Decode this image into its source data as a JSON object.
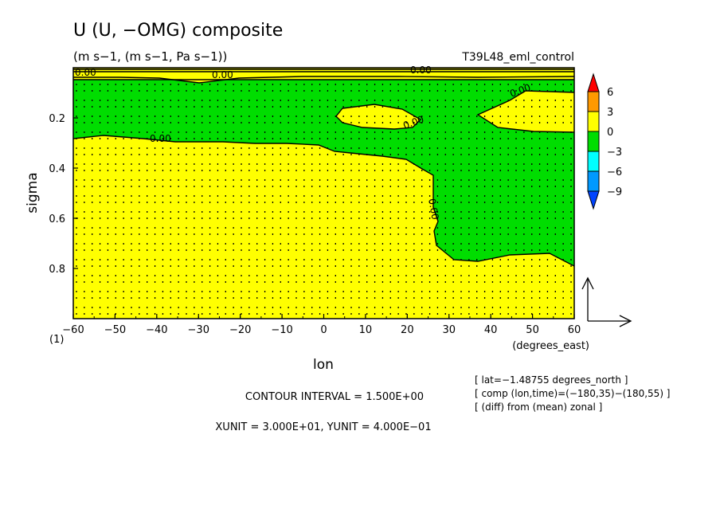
{
  "title": "U (U, −OMG) composite",
  "subtitle": "(m s−1, (m s−1, Pa s−1))",
  "run_label": "T39L48_eml_control",
  "xunit_label": "(degrees_east)",
  "panel_index": "(1)",
  "contour_interval": "CONTOUR INTERVAL = 1.500E+00",
  "units_line": "XUNIT = 3.000E+01, YUNIT = 4.000E−01",
  "info_lines": [
    "[ lat=−1.48755 degrees_north ]",
    "[ comp (lon,time)=(−180,35)−(180,55) ]",
    "[ (diff) from (mean) zonal ]"
  ],
  "chart_data": {
    "type": "heatmap",
    "title": "U (U, −OMG) composite",
    "subtitle": "(m s−1, (m s−1, Pa s−1))",
    "xlabel": "lon",
    "ylabel": "sigma",
    "xlim": [
      -60,
      60
    ],
    "ylim": [
      1.0,
      0.0
    ],
    "x_ticks": [
      -60,
      -50,
      -40,
      -30,
      -20,
      -10,
      0,
      10,
      20,
      30,
      40,
      50,
      60
    ],
    "x_tick_labels": [
      "−60",
      "−50",
      "−40",
      "−30",
      "−20",
      "−10",
      "0",
      "10",
      "20",
      "30",
      "40",
      "50",
      "60"
    ],
    "y_ticks": [
      0.2,
      0.4,
      0.6,
      0.8
    ],
    "y_tick_labels": [
      "0.2",
      "0.4",
      "0.6",
      "0.8"
    ],
    "contour_interval": 1.5,
    "contour_labels": [
      "0.00",
      "0.00",
      "0.00",
      "0.00",
      "0.00",
      "0.00",
      "0.00"
    ],
    "colorbar": {
      "levels": [
        6,
        3,
        0,
        -3,
        -6,
        -9
      ],
      "level_labels": [
        "6",
        "3",
        "0",
        "−3",
        "−6",
        "−9"
      ],
      "colors": [
        "#ff0000",
        "#ff9900",
        "#ffff00",
        "#00dd00",
        "#00ffff",
        "#0099ff",
        "#0044ff"
      ]
    },
    "regions": [
      {
        "sign": "negative",
        "color": "#00dd00",
        "lon_range": [
          -60,
          60
        ],
        "sigma_range": [
          0.05,
          0.29
        ]
      },
      {
        "sign": "positive",
        "color": "#ffff00",
        "lon_range": [
          -60,
          20
        ],
        "sigma_range": [
          0.29,
          1.0
        ]
      },
      {
        "sign": "negative",
        "color": "#00dd00",
        "lon_range": [
          25,
          60
        ],
        "sigma_range": [
          0.38,
          0.78
        ]
      },
      {
        "sign": "positive",
        "color": "#ffff00",
        "lon_range": [
          5,
          23
        ],
        "sigma_range": [
          0.16,
          0.23
        ]
      },
      {
        "sign": "positive",
        "color": "#ffff00",
        "lon_range": [
          38,
          60
        ],
        "sigma_range": [
          0.09,
          0.24
        ]
      }
    ],
    "vector_reference": {
      "xunit": 30.0,
      "yunit": 0.4
    }
  }
}
